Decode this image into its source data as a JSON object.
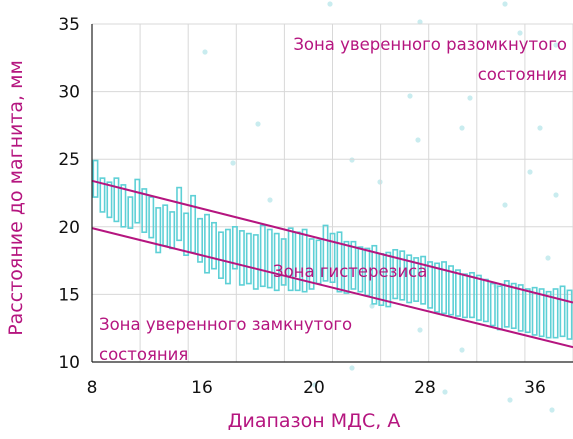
{
  "chart_data": {
    "type": "hysteresis-band",
    "xlabel": "Диапазон МДС, А",
    "ylabel": "Расстояние до магнита, мм",
    "x_tick_labels": [
      "8",
      "16",
      "20",
      "28",
      "36"
    ],
    "y_tick_labels": [
      "10",
      "15",
      "20",
      "25",
      "30",
      "35"
    ],
    "ylim": [
      10,
      35
    ],
    "grid": true,
    "boundary_lines": [
      {
        "y_start": 23.4,
        "y_end": 14.4
      },
      {
        "y_start": 19.9,
        "y_end": 11.1
      }
    ],
    "annotations": {
      "open_zone_line1": "Зона уверенного разомкнутого",
      "open_zone_line2": "состояния",
      "hysteresis_zone": "Зона гистерезиса",
      "closed_zone_line1": "Зона уверенного замкнутого",
      "closed_zone_line2": "состояния"
    },
    "bars": [
      {
        "hi": 24.9,
        "lo": 22.2
      },
      {
        "hi": 23.6,
        "lo": 21.1
      },
      {
        "hi": 23.3,
        "lo": 20.7
      },
      {
        "hi": 23.6,
        "lo": 20.4
      },
      {
        "hi": 23.1,
        "lo": 20.0
      },
      {
        "hi": 22.2,
        "lo": 19.9
      },
      {
        "hi": 23.5,
        "lo": 20.3
      },
      {
        "hi": 22.8,
        "lo": 19.6
      },
      {
        "hi": 22.2,
        "lo": 19.2
      },
      {
        "hi": 21.4,
        "lo": 18.1
      },
      {
        "hi": 21.6,
        "lo": 18.6
      },
      {
        "hi": 21.1,
        "lo": 18.4
      },
      {
        "hi": 22.9,
        "lo": 19.0
      },
      {
        "hi": 21.0,
        "lo": 17.9
      },
      {
        "hi": 22.3,
        "lo": 18.1
      },
      {
        "hi": 20.6,
        "lo": 17.4
      },
      {
        "hi": 20.9,
        "lo": 16.6
      },
      {
        "hi": 20.3,
        "lo": 16.9
      },
      {
        "hi": 19.6,
        "lo": 16.2
      },
      {
        "hi": 19.8,
        "lo": 15.8
      },
      {
        "hi": 20.0,
        "lo": 16.9
      },
      {
        "hi": 19.7,
        "lo": 15.7
      },
      {
        "hi": 19.5,
        "lo": 15.8
      },
      {
        "hi": 19.4,
        "lo": 15.4
      },
      {
        "hi": 20.1,
        "lo": 15.6
      },
      {
        "hi": 19.8,
        "lo": 15.5
      },
      {
        "hi": 19.5,
        "lo": 15.3
      },
      {
        "hi": 19.1,
        "lo": 15.7
      },
      {
        "hi": 19.9,
        "lo": 15.3
      },
      {
        "hi": 19.6,
        "lo": 15.3
      },
      {
        "hi": 19.8,
        "lo": 15.2
      },
      {
        "hi": 19.1,
        "lo": 15.4
      },
      {
        "hi": 19.0,
        "lo": 15.8
      },
      {
        "hi": 20.1,
        "lo": 16.0
      },
      {
        "hi": 19.5,
        "lo": 15.9
      },
      {
        "hi": 19.6,
        "lo": 15.2
      },
      {
        "hi": 18.9,
        "lo": 15.1
      },
      {
        "hi": 18.9,
        "lo": 15.4
      },
      {
        "hi": 18.5,
        "lo": 15.2
      },
      {
        "hi": 18.4,
        "lo": 14.9
      },
      {
        "hi": 18.6,
        "lo": 14.3
      },
      {
        "hi": 18.0,
        "lo": 14.2
      },
      {
        "hi": 18.1,
        "lo": 14.1
      },
      {
        "hi": 18.3,
        "lo": 14.7
      },
      {
        "hi": 18.2,
        "lo": 14.6
      },
      {
        "hi": 17.9,
        "lo": 14.4
      },
      {
        "hi": 17.7,
        "lo": 14.5
      },
      {
        "hi": 17.8,
        "lo": 14.3
      },
      {
        "hi": 17.4,
        "lo": 14.0
      },
      {
        "hi": 17.3,
        "lo": 13.7
      },
      {
        "hi": 17.4,
        "lo": 13.6
      },
      {
        "hi": 17.1,
        "lo": 13.5
      },
      {
        "hi": 16.8,
        "lo": 13.4
      },
      {
        "hi": 16.5,
        "lo": 13.3
      },
      {
        "hi": 16.6,
        "lo": 13.3
      },
      {
        "hi": 16.4,
        "lo": 13.1
      },
      {
        "hi": 16.1,
        "lo": 13.0
      },
      {
        "hi": 15.8,
        "lo": 12.7
      },
      {
        "hi": 15.6,
        "lo": 12.4
      },
      {
        "hi": 16.0,
        "lo": 12.6
      },
      {
        "hi": 15.8,
        "lo": 12.5
      },
      {
        "hi": 15.7,
        "lo": 12.3
      },
      {
        "hi": 15.4,
        "lo": 12.2
      },
      {
        "hi": 15.5,
        "lo": 12.0
      },
      {
        "hi": 15.4,
        "lo": 11.9
      },
      {
        "hi": 15.2,
        "lo": 11.8
      },
      {
        "hi": 15.4,
        "lo": 11.8
      },
      {
        "hi": 15.6,
        "lo": 11.9
      },
      {
        "hi": 15.3,
        "lo": 11.7
      }
    ]
  },
  "colors": {
    "accent": "#b5157f",
    "bar": "#5ed0d6",
    "grid": "#d8d8d8",
    "tick_text": "#111111",
    "background_dots": "#c9ecef"
  }
}
